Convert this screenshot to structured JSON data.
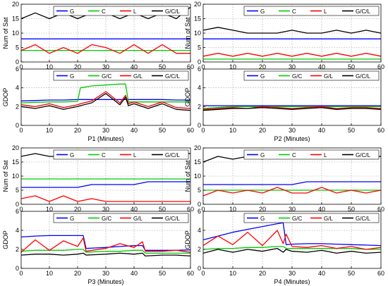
{
  "figure": {
    "background": "#ffffff"
  },
  "colors": {
    "G": "#0000ff",
    "C": "#00cc00",
    "L": "#ff0000",
    "GCL": "#000000"
  },
  "chart_data": [
    {
      "type": "line",
      "panel": "P1",
      "ylabel": "Num of Sat",
      "xlabel": "",
      "xlim": [
        0,
        60
      ],
      "ylim": [
        0,
        20
      ],
      "xticks": [
        0,
        10,
        20,
        30,
        40,
        50,
        60
      ],
      "yticks": [
        0,
        5,
        10,
        15,
        20
      ],
      "x": [
        0,
        5,
        10,
        15,
        20,
        25,
        30,
        35,
        40,
        45,
        50,
        55,
        60
      ],
      "series": [
        {
          "name": "G",
          "color_key": "G",
          "values": [
            8,
            8,
            8,
            8,
            8,
            8,
            8,
            8,
            8,
            8,
            8,
            8,
            8
          ]
        },
        {
          "name": "C",
          "color_key": "C",
          "values": [
            4,
            4,
            4,
            4,
            4,
            4,
            4,
            4,
            4,
            4,
            4,
            4,
            4
          ]
        },
        {
          "name": "L",
          "color_key": "L",
          "values": [
            4,
            6,
            3,
            5,
            3,
            6,
            5,
            3,
            6,
            3,
            6,
            3,
            3
          ]
        },
        {
          "name": "G/C/L",
          "color_key": "GCL",
          "values": [
            15,
            17,
            15,
            17,
            15,
            17,
            17,
            15,
            17,
            15,
            17,
            15,
            19
          ]
        }
      ]
    },
    {
      "type": "line",
      "panel": "P1",
      "ylabel": "GDOP",
      "xlabel": "P1 (Minutes)",
      "xlim": [
        0,
        60
      ],
      "ylim": [
        0,
        6
      ],
      "xticks": [
        0,
        10,
        20,
        30,
        40,
        50,
        60
      ],
      "yticks": [
        0,
        2,
        4,
        6
      ],
      "x": [
        0,
        5,
        10,
        15,
        20,
        21,
        25,
        30,
        35,
        37,
        38,
        40,
        45,
        50,
        55,
        60
      ],
      "series": [
        {
          "name": "G",
          "color_key": "G",
          "values": [
            2.6,
            2.65,
            2.7,
            2.7,
            2.75,
            2.75,
            2.75,
            2.75,
            2.75,
            2.75,
            2.75,
            2.75,
            2.75,
            2.75,
            2.7,
            2.7
          ]
        },
        {
          "name": "G/C",
          "color_key": "C",
          "values": [
            2.4,
            2.45,
            2.5,
            2.5,
            2.55,
            4.0,
            4.2,
            4.3,
            4.4,
            4.4,
            2.5,
            2.5,
            2.5,
            2.5,
            2.5,
            2.5
          ]
        },
        {
          "name": "G/L",
          "color_key": "L",
          "values": [
            2.2,
            2.0,
            2.3,
            1.9,
            2.2,
            2.3,
            2.6,
            3.6,
            2.4,
            3.2,
            2.3,
            2.5,
            2.0,
            2.5,
            1.9,
            1.8
          ]
        },
        {
          "name": "G/C/L",
          "color_key": "GCL",
          "values": [
            2.0,
            1.8,
            2.1,
            1.7,
            2.0,
            2.1,
            2.4,
            3.4,
            2.2,
            3.0,
            2.1,
            2.3,
            1.8,
            2.3,
            1.7,
            1.6
          ]
        }
      ]
    },
    {
      "type": "line",
      "panel": "P2",
      "ylabel": "Num of Sat",
      "xlabel": "",
      "xlim": [
        0,
        60
      ],
      "ylim": [
        0,
        20
      ],
      "xticks": [
        0,
        10,
        20,
        30,
        40,
        50,
        60
      ],
      "yticks": [
        0,
        5,
        10,
        15,
        20
      ],
      "x": [
        0,
        5,
        10,
        15,
        20,
        25,
        30,
        35,
        40,
        45,
        50,
        55,
        60
      ],
      "series": [
        {
          "name": "G",
          "color_key": "G",
          "values": [
            8,
            8,
            8,
            8,
            8,
            8,
            8,
            8,
            8,
            8,
            8,
            8,
            8
          ]
        },
        {
          "name": "C",
          "color_key": "C",
          "values": [
            1,
            1,
            1,
            1,
            1,
            1,
            1,
            1,
            1,
            1,
            1,
            1,
            1
          ]
        },
        {
          "name": "L",
          "color_key": "L",
          "values": [
            2,
            3,
            2,
            3,
            2,
            3,
            2,
            3,
            2,
            3,
            2,
            3,
            2
          ]
        },
        {
          "name": "G/C/L",
          "color_key": "GCL",
          "values": [
            11,
            12,
            11,
            10,
            10,
            10,
            11,
            10,
            10,
            11,
            10,
            11,
            10
          ]
        }
      ]
    },
    {
      "type": "line",
      "panel": "P2",
      "ylabel": "GDOP",
      "xlabel": "P2 (Minutes)",
      "xlim": [
        0,
        60
      ],
      "ylim": [
        0,
        6
      ],
      "xticks": [
        0,
        10,
        20,
        30,
        40,
        50,
        60
      ],
      "yticks": [
        0,
        2,
        4,
        6
      ],
      "x": [
        0,
        5,
        10,
        15,
        20,
        25,
        30,
        35,
        40,
        45,
        50,
        55,
        60
      ],
      "series": [
        {
          "name": "G",
          "color_key": "G",
          "values": [
            2.1,
            2.1,
            2.1,
            2.1,
            2.1,
            2.1,
            2.1,
            2.1,
            2.1,
            2.1,
            2.1,
            2.1,
            2.1
          ]
        },
        {
          "name": "G/C",
          "color_key": "C",
          "values": [
            1.8,
            1.9,
            2.0,
            2.0,
            2.0,
            2.0,
            2.0,
            2.0,
            2.0,
            2.0,
            2.0,
            2.0,
            2.0
          ]
        },
        {
          "name": "G/L",
          "color_key": "L",
          "values": [
            1.7,
            1.8,
            1.9,
            1.8,
            2.0,
            1.9,
            1.8,
            1.9,
            2.0,
            1.8,
            1.9,
            1.9,
            1.8
          ]
        },
        {
          "name": "G/C/L",
          "color_key": "GCL",
          "values": [
            1.6,
            1.7,
            1.8,
            1.8,
            1.9,
            1.8,
            1.7,
            1.8,
            1.9,
            1.7,
            1.8,
            1.8,
            1.7
          ]
        }
      ]
    },
    {
      "type": "line",
      "panel": "P3",
      "ylabel": "Num of Sat",
      "xlabel": "",
      "xlim": [
        0,
        60
      ],
      "ylim": [
        0,
        20
      ],
      "xticks": [
        0,
        10,
        20,
        30,
        40,
        50,
        60
      ],
      "yticks": [
        0,
        5,
        10,
        15,
        20
      ],
      "x": [
        0,
        5,
        10,
        15,
        20,
        25,
        30,
        35,
        40,
        45,
        50,
        55,
        60
      ],
      "series": [
        {
          "name": "G",
          "color_key": "G",
          "values": [
            6,
            6,
            6,
            6,
            6,
            7,
            7,
            7,
            7,
            8,
            8,
            8,
            8
          ]
        },
        {
          "name": "C",
          "color_key": "C",
          "values": [
            9,
            9,
            9,
            9,
            9,
            9,
            9,
            9,
            9,
            9,
            9,
            9,
            9
          ]
        },
        {
          "name": "L",
          "color_key": "L",
          "values": [
            2,
            3,
            1,
            3,
            1,
            2,
            1,
            1,
            1,
            1,
            1,
            1,
            1
          ]
        },
        {
          "name": "G/C/L",
          "color_key": "GCL",
          "values": [
            17,
            18,
            17,
            17,
            19,
            17,
            17,
            19,
            17,
            18,
            18,
            18,
            18
          ]
        }
      ]
    },
    {
      "type": "line",
      "panel": "P3",
      "ylabel": "GDOP",
      "xlabel": "P3 (Minutes)",
      "xlim": [
        0,
        60
      ],
      "ylim": [
        0,
        6
      ],
      "xticks": [
        0,
        10,
        20,
        30,
        40,
        50,
        60
      ],
      "yticks": [
        0,
        2,
        4,
        6
      ],
      "x": [
        0,
        5,
        10,
        15,
        20,
        22,
        23,
        30,
        35,
        40,
        43,
        44,
        50,
        55,
        60
      ],
      "series": [
        {
          "name": "G",
          "color_key": "G",
          "values": [
            3.3,
            3.4,
            3.45,
            3.45,
            3.45,
            3.45,
            2.1,
            2.2,
            2.3,
            2.4,
            2.4,
            1.9,
            1.9,
            1.9,
            1.95
          ]
        },
        {
          "name": "G/C",
          "color_key": "C",
          "values": [
            1.8,
            1.9,
            1.9,
            1.9,
            2.0,
            2.0,
            1.7,
            1.8,
            1.8,
            1.9,
            1.9,
            1.6,
            1.6,
            1.6,
            1.6
          ]
        },
        {
          "name": "G/L",
          "color_key": "L",
          "values": [
            1.7,
            3.0,
            1.9,
            2.9,
            2.3,
            3.2,
            1.8,
            2.1,
            2.6,
            2.2,
            2.8,
            1.8,
            1.8,
            1.9,
            1.7
          ]
        },
        {
          "name": "G/C/L",
          "color_key": "GCL",
          "values": [
            1.4,
            1.5,
            1.5,
            1.4,
            1.5,
            1.6,
            1.4,
            1.5,
            1.6,
            1.5,
            1.6,
            1.3,
            1.4,
            1.4,
            1.3
          ]
        }
      ]
    },
    {
      "type": "line",
      "panel": "P4",
      "ylabel": "Num of Sat",
      "xlabel": "",
      "xlim": [
        0,
        60
      ],
      "ylim": [
        0,
        20
      ],
      "xticks": [
        0,
        10,
        20,
        30,
        40,
        50,
        60
      ],
      "yticks": [
        0,
        5,
        10,
        15,
        20
      ],
      "x": [
        0,
        5,
        10,
        15,
        20,
        25,
        30,
        35,
        40,
        45,
        50,
        55,
        60
      ],
      "series": [
        {
          "name": "G",
          "color_key": "G",
          "values": [
            7,
            7,
            7,
            7,
            7,
            7,
            7,
            8,
            8,
            8,
            8,
            8,
            8
          ]
        },
        {
          "name": "C",
          "color_key": "C",
          "values": [
            5,
            5,
            5,
            5,
            5,
            5,
            5,
            5,
            5,
            5,
            5,
            5,
            5
          ]
        },
        {
          "name": "L",
          "color_key": "L",
          "values": [
            3,
            5,
            4,
            5,
            4,
            6,
            4,
            4,
            6,
            4,
            5,
            4,
            5
          ]
        },
        {
          "name": "G/C/L",
          "color_key": "GCL",
          "values": [
            15,
            17,
            16,
            17,
            16,
            18,
            17,
            17,
            18,
            17,
            18,
            17,
            17
          ]
        }
      ]
    },
    {
      "type": "line",
      "panel": "P4",
      "ylabel": "GDOP",
      "xlabel": "P4 (Minutes)",
      "xlim": [
        0,
        60
      ],
      "ylim": [
        0,
        6
      ],
      "xticks": [
        0,
        10,
        20,
        30,
        40,
        50,
        60
      ],
      "yticks": [
        0,
        2,
        4,
        6
      ],
      "x": [
        0,
        5,
        10,
        15,
        20,
        25,
        27,
        28,
        30,
        35,
        40,
        45,
        50,
        55,
        60
      ],
      "series": [
        {
          "name": "G",
          "color_key": "G",
          "values": [
            3.0,
            3.4,
            3.8,
            4.1,
            4.4,
            4.7,
            4.8,
            2.5,
            2.55,
            2.6,
            2.6,
            2.55,
            2.5,
            2.45,
            2.4
          ]
        },
        {
          "name": "G/C",
          "color_key": "C",
          "values": [
            2.0,
            2.1,
            2.1,
            2.2,
            2.2,
            2.3,
            2.3,
            2.1,
            2.1,
            2.1,
            2.1,
            2.1,
            2.1,
            2.0,
            2.0
          ]
        },
        {
          "name": "G/L",
          "color_key": "L",
          "values": [
            2.4,
            3.4,
            2.5,
            3.8,
            2.4,
            4.0,
            2.6,
            3.6,
            2.3,
            2.2,
            2.4,
            2.1,
            2.3,
            2.0,
            2.2
          ]
        },
        {
          "name": "G/C/L",
          "color_key": "GCL",
          "values": [
            1.6,
            2.0,
            1.7,
            2.0,
            1.8,
            2.1,
            1.7,
            2.0,
            1.8,
            1.7,
            1.9,
            1.6,
            1.8,
            1.6,
            1.7
          ]
        }
      ]
    }
  ]
}
